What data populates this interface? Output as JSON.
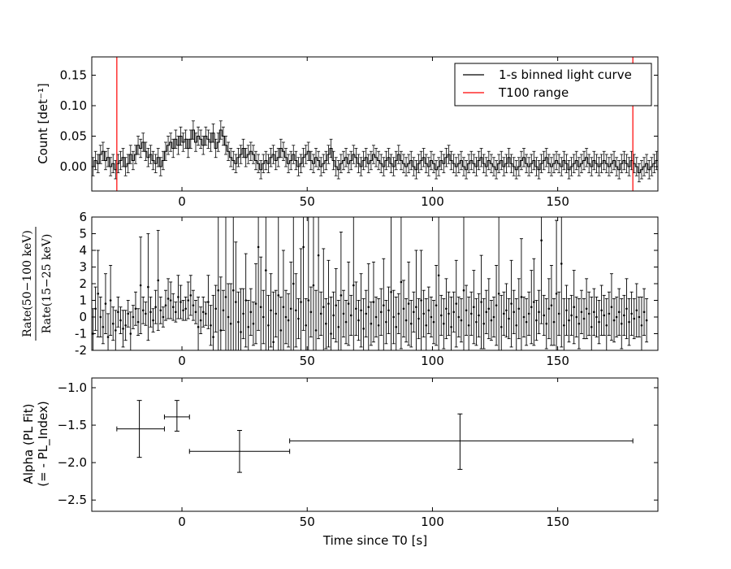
{
  "chart_data": [
    {
      "type": "line",
      "ylabel": "Count [det⁻¹]",
      "xlim": [
        -36,
        190
      ],
      "ylim": [
        -0.04,
        0.18
      ],
      "xticks": [
        0,
        50,
        100,
        150
      ],
      "yticks": [
        0.0,
        0.05,
        0.1,
        0.15
      ],
      "ytick_labels": [
        "0.00",
        "0.05",
        "0.10",
        "0.15"
      ],
      "legend_position": "top-right",
      "series": [
        {
          "name": "1-s binned light curve",
          "color": "#000000",
          "step": true,
          "x_start": -36,
          "x_step": 1,
          "errors": 0.015,
          "values": [
            0.0,
            0.01,
            0.005,
            0.02,
            0.025,
            0.01,
            0.015,
            0.0,
            0.005,
            -0.005,
            0.005,
            0.01,
            0.015,
            0.0,
            0.005,
            0.02,
            0.01,
            0.02,
            0.035,
            0.03,
            0.04,
            0.025,
            0.015,
            0.02,
            0.01,
            0.005,
            0.015,
            0.0,
            0.01,
            0.025,
            0.035,
            0.04,
            0.03,
            0.045,
            0.035,
            0.05,
            0.04,
            0.045,
            0.03,
            0.045,
            0.06,
            0.04,
            0.05,
            0.045,
            0.035,
            0.05,
            0.045,
            0.04,
            0.055,
            0.03,
            0.04,
            0.06,
            0.05,
            0.035,
            0.025,
            0.015,
            0.01,
            0.005,
            0.015,
            0.02,
            0.03,
            0.015,
            0.02,
            0.025,
            0.02,
            0.01,
            0.005,
            -0.005,
            0.005,
            0.01,
            0.005,
            0.015,
            0.02,
            0.01,
            0.015,
            0.03,
            0.025,
            0.015,
            0.005,
            0.01,
            0.02,
            0.01,
            0.0,
            0.005,
            0.015,
            0.02,
            0.025,
            0.01,
            0.005,
            0.015,
            0.01,
            0.0,
            0.005,
            0.01,
            0.02,
            0.03,
            0.01,
            0.0,
            -0.005,
            0.005,
            0.01,
            0.015,
            0.005,
            0.01,
            0.02,
            0.015,
            0.005,
            0.0,
            0.01,
            0.015,
            0.005,
            0.01,
            0.02,
            0.015,
            0.01,
            0.005,
            0.0,
            0.01,
            0.015,
            0.005,
            0.0,
            0.01,
            0.02,
            0.01,
            0.005,
            0.0,
            0.005,
            0.01,
            0.0,
            -0.005,
            0.005,
            0.01,
            0.015,
            0.005,
            0.0,
            0.01,
            0.005,
            -0.005,
            0.0,
            0.01,
            0.005,
            0.015,
            0.02,
            0.01,
            0.005,
            0.0,
            0.005,
            0.01,
            0.0,
            -0.005,
            0.005,
            0.01,
            0.005,
            0.0,
            0.01,
            0.015,
            0.005,
            0.0,
            0.01,
            0.005,
            0.0,
            -0.005,
            0.005,
            0.01,
            0.0,
            0.005,
            0.015,
            0.005,
            0.0,
            -0.005,
            0.0,
            0.01,
            0.015,
            0.005,
            0.0,
            0.005,
            0.01,
            0.0,
            -0.005,
            0.005,
            0.01,
            0.015,
            0.005,
            0.0,
            0.005,
            0.01,
            0.005,
            0.0,
            0.01,
            0.005,
            -0.005,
            0.0,
            0.005,
            0.01,
            0.0,
            0.005,
            0.01,
            0.015,
            0.005,
            0.0,
            0.01,
            0.005,
            0.0,
            0.005,
            0.01,
            0.005,
            0.0,
            0.005,
            0.01,
            0.0,
            -0.005,
            0.005,
            0.01,
            0.005,
            0.0,
            0.01,
            0.005,
            0.0,
            -0.01,
            -0.005,
            0.0,
            0.005,
            -0.005,
            0.0,
            0.005,
            0.01
          ]
        },
        {
          "name": "T100 range",
          "color": "#ff0000",
          "vlines": [
            -26,
            180
          ]
        }
      ]
    },
    {
      "type": "scatter",
      "ylabel_numerator": "Rate(50−100 keV)",
      "ylabel_denominator": "Rate(15−25 keV)",
      "xlim": [
        -36,
        190
      ],
      "ylim": [
        -2,
        6
      ],
      "xticks": [
        0,
        50,
        100,
        150
      ],
      "yticks": [
        -2,
        -1,
        0,
        1,
        2,
        3,
        4,
        5,
        6
      ],
      "x_start": -35.5,
      "x_step": 1,
      "values": [
        -1.0,
        0.5,
        1.4,
        0.0,
        -0.6,
        0.8,
        -1.2,
        1.0,
        -0.4,
        -0.8,
        0.3,
        -0.2,
        -0.7,
        -0.5,
        0.2,
        -1.0,
        0.0,
        0.5,
        -0.3,
        1.9,
        0.4,
        0.2,
        1.8,
        0.3,
        -0.2,
        0.6,
        2.2,
        0.4,
        0.0,
        0.7,
        1.1,
        1.0,
        0.6,
        0.3,
        1.2,
        0.9,
        0.4,
        0.5,
        1.0,
        1.3,
        0.7,
        0.3,
        -0.6,
        -0.2,
        0.3,
        0.2,
        0.9,
        -0.5,
        -1.2,
        0.5,
        1.6,
        -0.8,
        0.4,
        1.2,
        0.0,
        -0.4,
        1.6,
        0.9,
        -0.3,
        -0.9,
        0.2,
        1.0,
        -0.6,
        0.3,
        -0.4,
        0.8,
        4.2,
        0.6,
        0.0,
        2.8,
        -0.5,
        0.4,
        -1.5,
        0.2,
        1.3,
        -0.8,
        0.6,
        0.0,
        -0.2,
        0.5,
        2.0,
        0.4,
        -0.1,
        0.9,
        4.2,
        -0.5,
        1.0,
        0.3,
        1.9,
        -0.8,
        3.7,
        0.2,
        0.6,
        -0.4,
        0.8,
        -1.0,
        0.1,
        0.7,
        -0.6,
        1.3,
        0.2,
        -0.3,
        0.8,
        0.1,
        1.9,
        0.5,
        -0.2,
        0.4,
        -0.7,
        0.2,
        0.6,
        -0.4,
        0.9,
        0.0,
        -0.5,
        0.3,
        0.7,
        -0.3,
        0.4,
        1.5,
        0.0,
        -0.6,
        0.2,
        2.1,
        0.5,
        -0.2,
        0.8,
        -0.4,
        0.3,
        0.6,
        -0.1,
        1.0,
        0.2,
        -0.5,
        0.4,
        0.0,
        -0.3,
        0.7,
        2.5,
        0.1,
        -0.4,
        0.5,
        0.2,
        -0.6,
        0.3,
        0.8,
        0.0,
        -0.2,
        1.6,
        0.4,
        -0.5,
        0.2,
        0.6,
        -0.3,
        0.1,
        0.9,
        -0.4,
        0.3,
        0.5,
        -0.2,
        0.0,
        0.7,
        1.4,
        -0.6,
        0.2,
        0.4,
        -0.1,
        0.8,
        0.3,
        -0.5,
        0.5,
        1.2,
        0.0,
        -0.3,
        0.2,
        0.6,
        0.9,
        -0.2,
        0.3,
        4.6,
        0.1,
        -0.4,
        0.5,
        0.7,
        -0.3,
        1.4,
        0.2,
        3.2,
        -0.5,
        0.4,
        -0.2,
        0.1,
        0.6,
        0.0,
        -0.4,
        0.3,
        -0.1,
        0.5,
        0.2,
        -0.6,
        0.3,
        0.0,
        -0.3,
        0.4,
        0.1,
        -0.5,
        0.2,
        0.6,
        -0.2,
        0.0,
        0.3,
        -0.4,
        0.1,
        0.5,
        -0.3,
        0.2,
        -0.1,
        0.4,
        0.0,
        -0.5,
        0.3,
        -0.2
      ],
      "errors": [
        1.5,
        1.3,
        2.6,
        1.2,
        1.0,
        1.8,
        1.4,
        2.1,
        1.0,
        1.2,
        0.9,
        0.8,
        1.1,
        0.9,
        0.8,
        1.3,
        0.7,
        1.0,
        0.8,
        2.9,
        0.8,
        0.7,
        3.2,
        0.9,
        0.7,
        1.0,
        3.0,
        0.8,
        0.6,
        0.9,
        1.2,
        1.1,
        0.8,
        0.6,
        1.3,
        1.0,
        0.6,
        0.7,
        1.1,
        1.2,
        0.9,
        0.7,
        1.8,
        0.8,
        0.9,
        0.7,
        1.6,
        1.2,
        2.5,
        1.4,
        5.0,
        3.2,
        1.2,
        4.8,
        2.0,
        2.4,
        5.0,
        3.6,
        1.8,
        2.6,
        1.5,
        2.8,
        1.6,
        1.4,
        1.3,
        2.4,
        5.0,
        3.0,
        1.6,
        5.0,
        1.8,
        2.2,
        3.0,
        1.4,
        5.0,
        2.0,
        3.4,
        1.6,
        1.6,
        2.8,
        5.0,
        2.2,
        1.2,
        3.2,
        5.0,
        1.6,
        5.0,
        1.5,
        5.0,
        2.4,
        5.0,
        1.3,
        3.5,
        1.5,
        2.6,
        2.2,
        1.4,
        2.2,
        1.6,
        3.8,
        1.4,
        1.3,
        2.5,
        1.2,
        4.5,
        1.6,
        1.2,
        2.2,
        1.8,
        1.4,
        2.6,
        1.3,
        2.4,
        1.2,
        1.6,
        1.4,
        2.8,
        1.3,
        1.4,
        5.0,
        1.6,
        1.8,
        1.2,
        4.0,
        1.7,
        1.3,
        2.5,
        1.4,
        1.2,
        3.4,
        1.2,
        3.0,
        1.4,
        1.6,
        1.4,
        1.2,
        1.3,
        2.4,
        5.0,
        1.2,
        1.5,
        1.8,
        1.3,
        1.8,
        1.2,
        2.6,
        1.2,
        1.3,
        5.0,
        1.5,
        1.7,
        1.3,
        2.2,
        1.4,
        1.3,
        2.8,
        1.5,
        1.3,
        1.8,
        1.2,
        1.2,
        2.4,
        5.0,
        1.9,
        1.3,
        1.6,
        1.2,
        2.6,
        1.3,
        1.6,
        1.8,
        3.5,
        1.2,
        1.4,
        1.3,
        2.2,
        2.6,
        1.2,
        1.3,
        5.0,
        1.2,
        1.5,
        1.8,
        2.4,
        1.4,
        4.4,
        1.3,
        5.0,
        1.6,
        1.5,
        1.3,
        1.2,
        2.2,
        1.2,
        1.5,
        1.3,
        1.2,
        1.8,
        1.3,
        1.8,
        1.4,
        1.2,
        1.3,
        1.5,
        1.2,
        1.6,
        1.3,
        2.0,
        1.3,
        1.2,
        1.4,
        1.5,
        1.2,
        1.8,
        1.4,
        1.3,
        1.2,
        1.6,
        1.2,
        1.7,
        1.4,
        1.3
      ]
    },
    {
      "type": "scatter",
      "xlabel": "Time since T0 [s]",
      "ylabel_line1": "Alpha (PL Fit)",
      "ylabel_line2": "(= - PL_Index)",
      "xlim": [
        -36,
        190
      ],
      "ylim": [
        -2.65,
        -0.87
      ],
      "xticks": [
        0,
        50,
        100,
        150
      ],
      "yticks": [
        -2.5,
        -2.0,
        -1.5,
        -1.0
      ],
      "ytick_labels": [
        "−2.5",
        "−2.0",
        "−1.5",
        "−1.0"
      ],
      "points": [
        {
          "x": -17,
          "xlo": -26,
          "xhi": -7,
          "y": -1.55,
          "ylo": -1.93,
          "yhi": -1.17
        },
        {
          "x": -2,
          "xlo": -7,
          "xhi": 3,
          "y": -1.39,
          "ylo": -1.58,
          "yhi": -1.17
        },
        {
          "x": 23,
          "xlo": 3,
          "xhi": 43,
          "y": -1.85,
          "ylo": -2.13,
          "yhi": -1.57
        },
        {
          "x": 111,
          "xlo": 43,
          "xhi": 180,
          "y": -1.71,
          "ylo": -2.09,
          "yhi": -1.35
        }
      ]
    }
  ]
}
